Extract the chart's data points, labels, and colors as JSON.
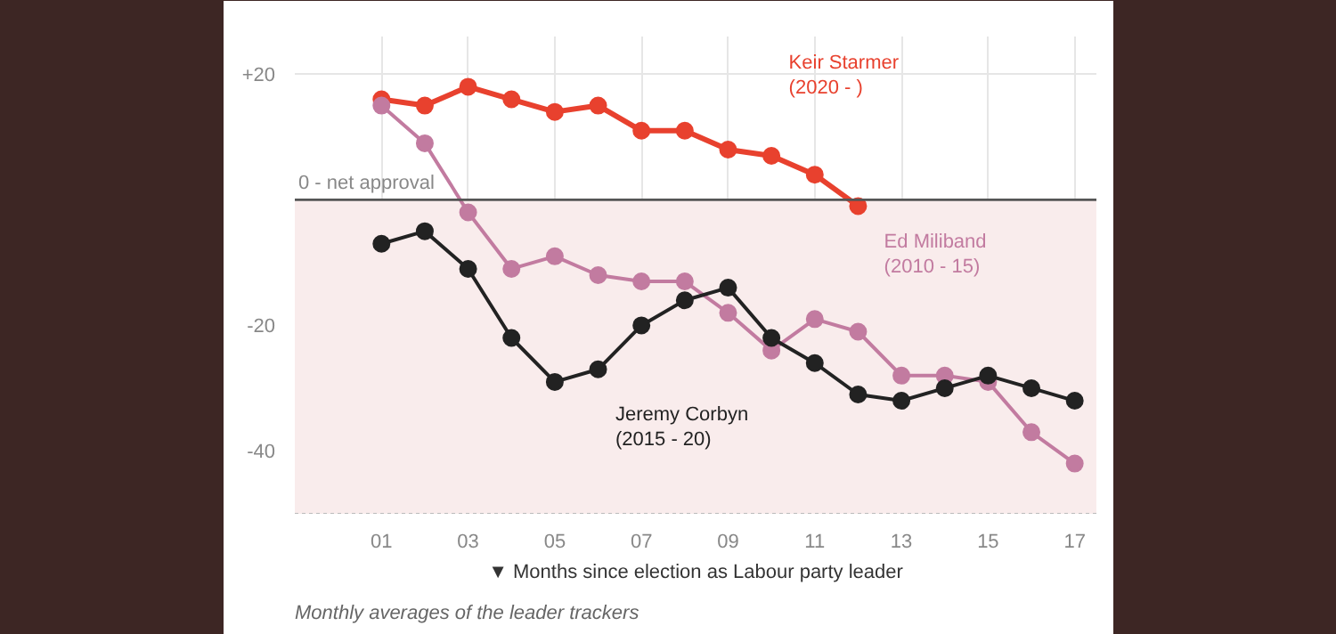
{
  "chart_data": {
    "type": "line",
    "xlabel": "▼ Months since election as Labour party leader",
    "x": [
      1,
      2,
      3,
      4,
      5,
      6,
      7,
      8,
      9,
      10,
      11,
      12,
      13,
      14,
      15,
      16,
      17
    ],
    "series": [
      {
        "name": "Keir Starmer\n(2020 - )",
        "color": "#e8412e",
        "values": [
          16,
          15,
          18,
          16,
          14,
          15,
          11,
          11,
          8,
          7,
          4,
          -1,
          null,
          null,
          null,
          null,
          null
        ]
      },
      {
        "name": "Ed Miliband\n(2010 - 15)",
        "color": "#c27ba0",
        "values": [
          15,
          9,
          -2,
          -11,
          -9,
          -12,
          -13,
          -13,
          -18,
          -24,
          -19,
          -21,
          -28,
          -28,
          -29,
          -37,
          -42
        ]
      },
      {
        "name": "Jeremy Corbyn\n(2015 - 20)",
        "color": "#222222",
        "values": [
          -7,
          -5,
          -11,
          -22,
          -29,
          -27,
          -20,
          -16,
          -14,
          -22,
          -26,
          -31,
          -32,
          -30,
          -28,
          -30,
          -32
        ]
      }
    ],
    "xlim": [
      -1,
      17.5
    ],
    "ylim": [
      -50,
      26
    ],
    "xticks": [
      {
        "value": 1,
        "label": "01"
      },
      {
        "value": 3,
        "label": "03"
      },
      {
        "value": 5,
        "label": "05"
      },
      {
        "value": 7,
        "label": "07"
      },
      {
        "value": 9,
        "label": "09"
      },
      {
        "value": 11,
        "label": "11"
      },
      {
        "value": 13,
        "label": "13"
      },
      {
        "value": 15,
        "label": "15"
      },
      {
        "value": 17,
        "label": "17"
      }
    ],
    "yticks": [
      {
        "value": 20,
        "label": "+20"
      },
      {
        "value": -20,
        "label": "-20"
      },
      {
        "value": -40,
        "label": "-40"
      }
    ],
    "ref_lines": [
      {
        "axis": "y",
        "value": 0,
        "label": "0 - net approval",
        "color": "#555555"
      }
    ],
    "bands": [
      {
        "axis": "y",
        "from": 0,
        "to": -50,
        "color": "#f9ecec"
      }
    ],
    "grid": true,
    "marker": "circle",
    "line_style": "solid",
    "annotations": [
      "Monthly averages of the leader trackers"
    ]
  }
}
